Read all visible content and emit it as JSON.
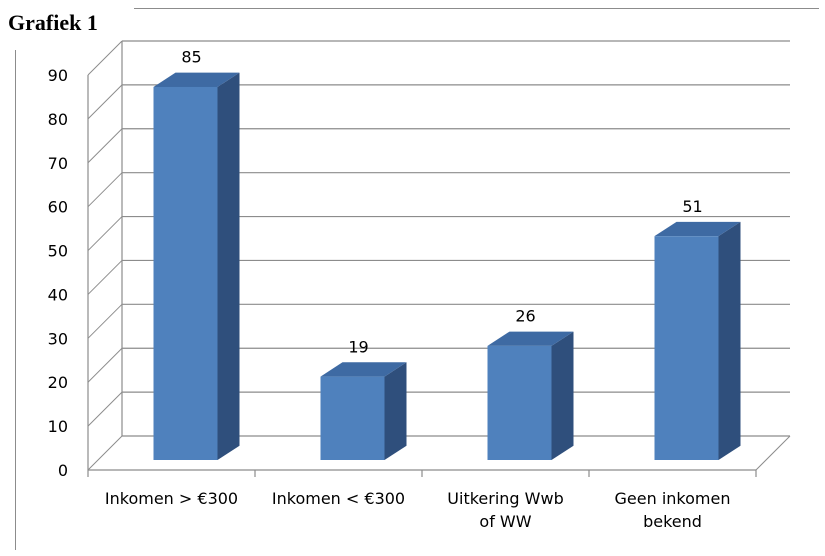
{
  "title": "Grafiek 1",
  "chart_data": {
    "type": "bar",
    "title": "Grafiek 1",
    "categories": [
      [
        "Inkomen > €300"
      ],
      [
        "Inkomen < €300"
      ],
      [
        "Uitkering Wwb",
        "of WW"
      ],
      [
        "Geen inkomen",
        "bekend"
      ]
    ],
    "values": [
      85,
      19,
      26,
      51
    ],
    "ylim": [
      0,
      90
    ],
    "yticks": [
      0,
      10,
      20,
      30,
      40,
      50,
      60,
      70,
      80,
      90
    ],
    "grid": true,
    "legend": "none",
    "style": "3d-column",
    "colors": {
      "front": "#4f81bd",
      "side": "#2f4f7c",
      "top": "#3e6aa3",
      "grid": "#8c8c8c"
    }
  }
}
